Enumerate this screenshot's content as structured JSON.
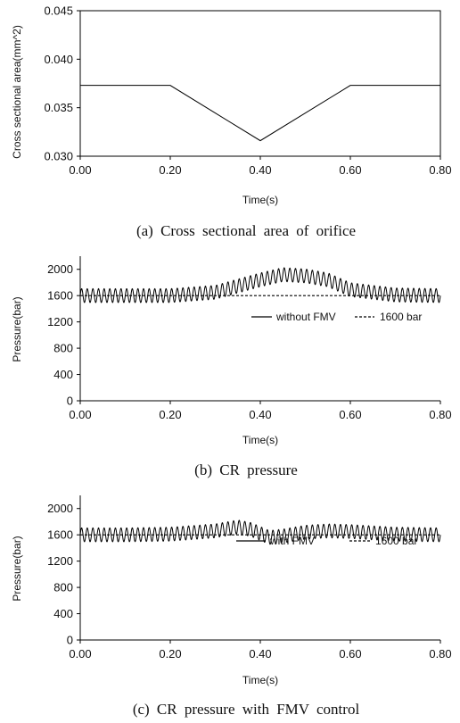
{
  "chart_data": [
    {
      "type": "line",
      "caption": "(a)  Cross  sectional  area  of  orifice",
      "xlabel": "Time(s)",
      "ylabel": "Cross sectional area(mm^2)",
      "xlim": [
        0,
        0.8
      ],
      "ylim": [
        0.03,
        0.045
      ],
      "xticks": [
        "0.00",
        "0.20",
        "0.40",
        "0.60",
        "0.80"
      ],
      "yticks": [
        "0.030",
        "0.035",
        "0.040",
        "0.045"
      ],
      "grid": false,
      "series": [
        {
          "style": "solid",
          "x": [
            0,
            0.2,
            0.4,
            0.6,
            0.8
          ],
          "y": [
            0.0373,
            0.0373,
            0.0316,
            0.0373,
            0.0373
          ]
        }
      ]
    },
    {
      "type": "line",
      "caption": "(b)  CR  pressure",
      "xlabel": "Time(s)",
      "ylabel": "Pressure(bar)",
      "xlim": [
        0,
        0.8
      ],
      "ylim": [
        0,
        2200
      ],
      "xticks": [
        "0.00",
        "0.20",
        "0.40",
        "0.60",
        "0.80"
      ],
      "yticks": [
        "0",
        "400",
        "800",
        "1200",
        "1600",
        "2000"
      ],
      "grid": false,
      "legend_position": "center-right",
      "series": [
        {
          "name": "without FMV",
          "style": "solid",
          "oscillation_period_s": 0.0125,
          "amplitude_bar": 105,
          "x": [
            0,
            0.1,
            0.2,
            0.3,
            0.4,
            0.45,
            0.5,
            0.55,
            0.6,
            0.7,
            0.8
          ],
          "y": [
            1600,
            1600,
            1600,
            1650,
            1840,
            1920,
            1900,
            1840,
            1690,
            1610,
            1600
          ]
        },
        {
          "name": "1600 bar",
          "style": "dashed",
          "x": [
            0,
            0.8
          ],
          "y": [
            1600,
            1600
          ]
        }
      ]
    },
    {
      "type": "line",
      "caption": "(c)  CR  pressure  with  FMV  control",
      "xlabel": "Time(s)",
      "ylabel": "Pressure(bar)",
      "xlim": [
        0,
        0.8
      ],
      "ylim": [
        0,
        2200
      ],
      "xticks": [
        "0.00",
        "0.20",
        "0.40",
        "0.60",
        "0.80"
      ],
      "yticks": [
        "0",
        "400",
        "800",
        "1200",
        "1600",
        "2000"
      ],
      "grid": false,
      "legend_position": "center-right",
      "series": [
        {
          "name": "with FMV",
          "style": "solid",
          "oscillation_period_s": 0.0125,
          "amplitude_bar": 105,
          "x": [
            0,
            0.1,
            0.2,
            0.3,
            0.35,
            0.38,
            0.42,
            0.45,
            0.5,
            0.55,
            0.6,
            0.7,
            0.8
          ],
          "y": [
            1600,
            1600,
            1610,
            1660,
            1720,
            1680,
            1560,
            1580,
            1640,
            1660,
            1650,
            1610,
            1600
          ]
        },
        {
          "name": "1600 bar",
          "style": "dashed",
          "x": [
            0,
            0.8
          ],
          "y": [
            1600,
            1600
          ]
        }
      ]
    }
  ]
}
